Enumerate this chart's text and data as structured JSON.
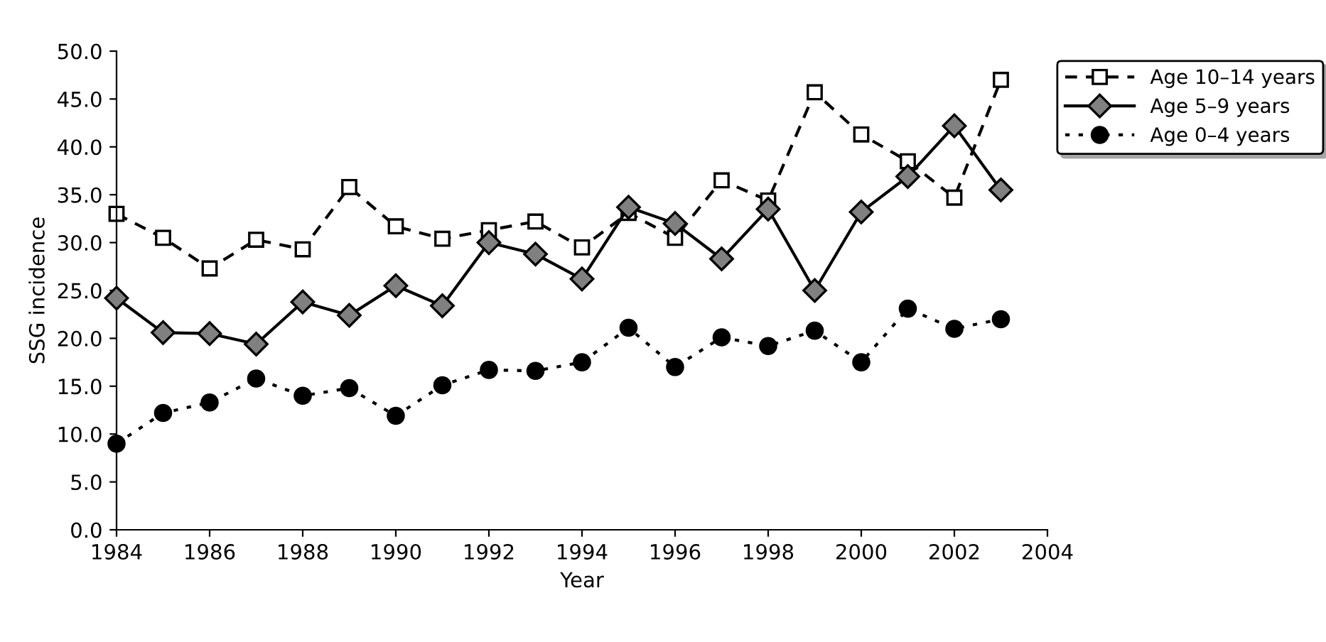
{
  "chart_data": {
    "type": "line",
    "xlabel": "Year",
    "ylabel": "SSG incidence",
    "x": [
      1984,
      1985,
      1986,
      1987,
      1988,
      1989,
      1990,
      1991,
      1992,
      1993,
      1994,
      1995,
      1996,
      1997,
      1998,
      1999,
      2000,
      2001,
      2002,
      2003
    ],
    "series": [
      {
        "name": "Age 10–14 years",
        "color": "#000000",
        "marker": "square",
        "line_style": "dashed",
        "values": [
          33.0,
          30.5,
          27.3,
          30.3,
          29.3,
          35.8,
          31.7,
          30.4,
          31.3,
          32.2,
          29.5,
          33.1,
          30.5,
          36.5,
          34.4,
          45.7,
          41.3,
          38.5,
          34.7,
          47.0
        ]
      },
      {
        "name": "Age 5–9 years",
        "color": "#000000",
        "marker": "diamond",
        "line_style": "solid",
        "values": [
          24.2,
          20.6,
          20.5,
          19.4,
          23.8,
          22.4,
          25.5,
          23.4,
          30.0,
          28.8,
          26.2,
          33.7,
          32.0,
          28.3,
          33.5,
          25.0,
          33.2,
          36.9,
          42.2,
          35.5
        ]
      },
      {
        "name": "Age 0–4 years",
        "color": "#000000",
        "marker": "circle",
        "line_style": "dotted",
        "values": [
          9.0,
          12.2,
          13.3,
          15.8,
          14.0,
          14.8,
          11.9,
          15.1,
          16.7,
          16.6,
          17.5,
          21.1,
          17.0,
          20.1,
          19.2,
          20.8,
          17.5,
          23.1,
          21.0,
          22.0
        ]
      }
    ],
    "xlim": [
      1984,
      2004
    ],
    "xticks": [
      1984,
      1986,
      1988,
      1990,
      1992,
      1994,
      1996,
      1998,
      2000,
      2002,
      2004
    ],
    "ylim": [
      0,
      50
    ],
    "yticks": [
      {
        "value": 0,
        "label": "0.0"
      },
      {
        "value": 5,
        "label": "5.0"
      },
      {
        "value": 10,
        "label": "10.0"
      },
      {
        "value": 15,
        "label": "15.0"
      },
      {
        "value": 20,
        "label": "20.0"
      },
      {
        "value": 25,
        "label": "25.0"
      },
      {
        "value": 30,
        "label": "30.0"
      },
      {
        "value": 35,
        "label": "35.0"
      },
      {
        "value": 40,
        "label": "40.0"
      },
      {
        "value": 45,
        "label": "45.0"
      },
      {
        "value": 50,
        "label": "50.0"
      }
    ],
    "grid": false,
    "legend": "top right"
  }
}
